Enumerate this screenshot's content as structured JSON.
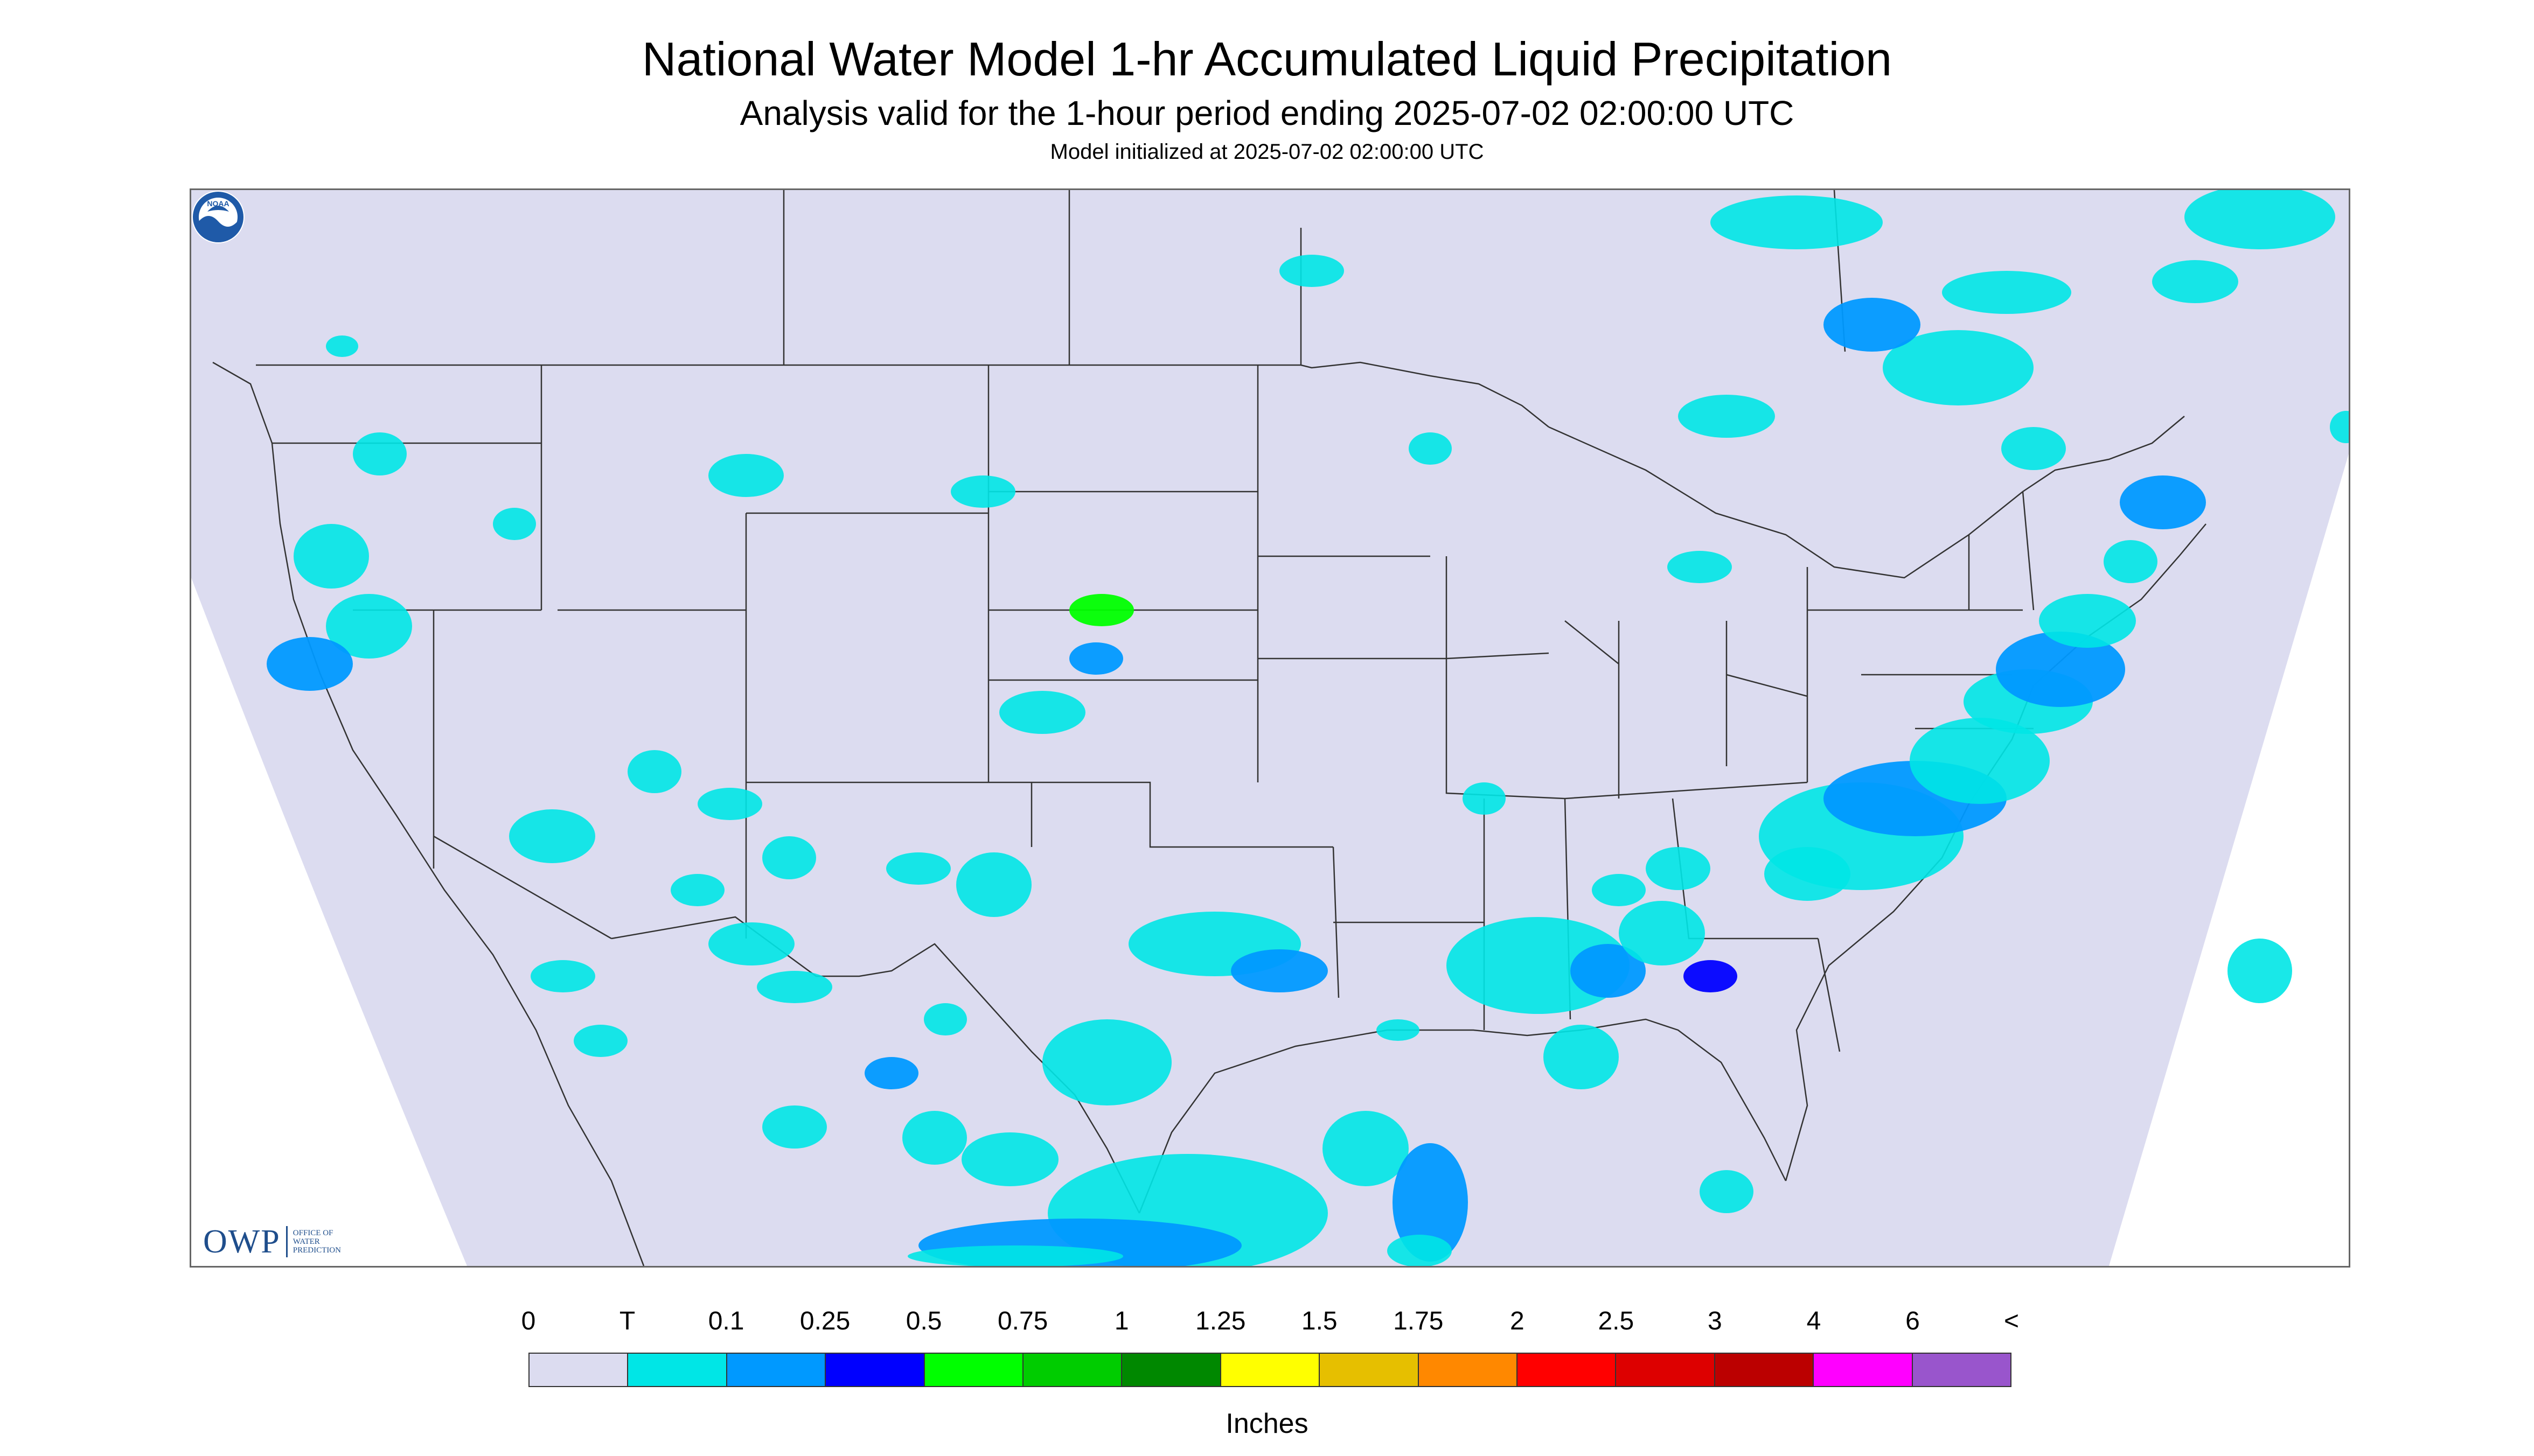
{
  "header": {
    "title": "National Water Model 1-hr Accumulated Liquid Precipitation",
    "subtitle": "Analysis valid for the 1-hour period ending 2025-07-02 02:00:00 UTC",
    "init": "Model initialized at 2025-07-02 02:00:00 UTC"
  },
  "logos": {
    "owp_mark": "OWP",
    "owp_lines": [
      "OFFICE OF",
      "WATER",
      "PREDICTION"
    ],
    "noaa_text": "NOAA"
  },
  "legend": {
    "labels": [
      "0",
      "T",
      "0.1",
      "0.25",
      "0.5",
      "0.75",
      "1",
      "1.25",
      "1.5",
      "1.75",
      "2",
      "2.5",
      "3",
      "4",
      "6",
      "<"
    ],
    "colors": [
      "#dcdcf0",
      "#00e6e6",
      "#0099ff",
      "#0000ff",
      "#00ff00",
      "#00cc00",
      "#008800",
      "#ffff00",
      "#e6bf00",
      "#ff8800",
      "#ff0000",
      "#dd0000",
      "#bb0000",
      "#ff00ff",
      "#9955cc"
    ],
    "units": "Inches"
  },
  "map": {
    "domain_color": "#dcdcf0",
    "outside_color": "#ffffff",
    "boundary_color": "#333333"
  }
}
